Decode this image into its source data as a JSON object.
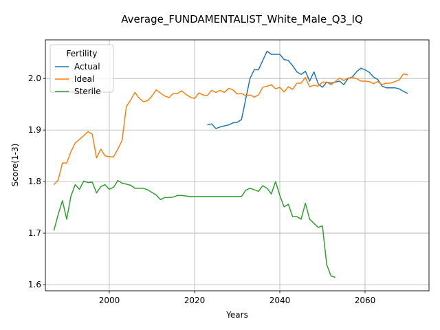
{
  "chart_data": {
    "type": "line",
    "title": "Average_FUNDAMENTALIST_White_Male_Q3_IQ",
    "xlabel": "Years",
    "ylabel": "Score(1-3)",
    "xlim": [
      1985,
      2075
    ],
    "ylim": [
      1.588,
      2.075
    ],
    "xticks": [
      2000,
      2020,
      2040,
      2060
    ],
    "yticks": [
      1.6,
      1.7,
      1.8,
      1.9,
      2.0
    ],
    "xtick_labels": [
      "2000",
      "2020",
      "2040",
      "2060"
    ],
    "ytick_labels": [
      "1.6",
      "1.7",
      "1.8",
      "1.9",
      "2.0"
    ],
    "grid": true,
    "legend": {
      "title": "Fertility",
      "placement": "upper left"
    },
    "series": [
      {
        "name": "Actual",
        "color": "#1f77b4",
        "x": [
          2023,
          2024,
          2025,
          2026,
          2027,
          2028,
          2029,
          2030,
          2031,
          2032,
          2033,
          2034,
          2035,
          2036,
          2037,
          2038,
          2039,
          2040,
          2041,
          2042,
          2043,
          2044,
          2045,
          2046,
          2047,
          2048,
          2049,
          2050,
          2051,
          2052,
          2053,
          2054,
          2055,
          2056,
          2057,
          2058,
          2059,
          2060,
          2061,
          2062,
          2063,
          2064,
          2065,
          2066,
          2067,
          2068,
          2069,
          2070
        ],
        "y": [
          1.91,
          1.912,
          1.903,
          1.906,
          1.908,
          1.91,
          1.914,
          1.915,
          1.92,
          1.96,
          2.0,
          2.017,
          2.017,
          2.035,
          2.053,
          2.047,
          2.047,
          2.047,
          2.037,
          2.035,
          2.025,
          2.013,
          2.008,
          2.014,
          1.995,
          2.013,
          1.99,
          1.983,
          1.993,
          1.991,
          1.993,
          1.995,
          1.988,
          2.0,
          2.003,
          2.013,
          2.02,
          2.017,
          2.012,
          2.003,
          1.998,
          1.985,
          1.982,
          1.982,
          1.982,
          1.98,
          1.975,
          1.971
        ]
      },
      {
        "name": "Ideal",
        "color": "#ff7f0e",
        "x": [
          1987,
          1988,
          1989,
          1990,
          1991,
          1992,
          1993,
          1994,
          1995,
          1996,
          1997,
          1998,
          1999,
          2000,
          2001,
          2002,
          2003,
          2004,
          2005,
          2006,
          2007,
          2008,
          2009,
          2010,
          2011,
          2012,
          2013,
          2014,
          2015,
          2016,
          2017,
          2018,
          2019,
          2020,
          2021,
          2022,
          2023,
          2024,
          2025,
          2026,
          2027,
          2028,
          2029,
          2030,
          2031,
          2032,
          2033,
          2034,
          2035,
          2036,
          2037,
          2038,
          2039,
          2040,
          2041,
          2042,
          2043,
          2044,
          2045,
          2046,
          2047,
          2048,
          2049,
          2050,
          2051,
          2052,
          2053,
          2054,
          2055,
          2056,
          2057,
          2058,
          2059,
          2060,
          2061,
          2062,
          2063,
          2064,
          2065,
          2066,
          2067,
          2068,
          2069,
          2070
        ],
        "y": [
          1.794,
          1.803,
          1.836,
          1.836,
          1.858,
          1.875,
          1.882,
          1.889,
          1.897,
          1.892,
          1.846,
          1.863,
          1.85,
          1.848,
          1.848,
          1.863,
          1.88,
          1.946,
          1.958,
          1.973,
          1.962,
          1.955,
          1.957,
          1.966,
          1.978,
          1.972,
          1.966,
          1.963,
          1.971,
          1.971,
          1.976,
          1.969,
          1.964,
          1.961,
          1.972,
          1.968,
          1.967,
          1.977,
          1.973,
          1.977,
          1.973,
          1.981,
          1.978,
          1.97,
          1.971,
          1.967,
          1.968,
          1.964,
          1.968,
          1.983,
          1.985,
          1.988,
          1.98,
          1.983,
          1.974,
          1.984,
          1.979,
          1.991,
          1.991,
          2.002,
          1.984,
          1.987,
          1.985,
          1.993,
          1.993,
          1.988,
          1.994,
          2.001,
          1.996,
          2.001,
          2.002,
          2.0,
          1.995,
          1.995,
          1.994,
          1.99,
          1.994,
          1.988,
          1.991,
          1.991,
          1.994,
          1.997,
          2.009,
          2.007
        ]
      },
      {
        "name": "Sterile",
        "color": "#2ca02c",
        "x": [
          1987,
          1988,
          1989,
          1990,
          1991,
          1992,
          1993,
          1994,
          1995,
          1996,
          1997,
          1998,
          1999,
          2000,
          2001,
          2002,
          2003,
          2004,
          2005,
          2006,
          2007,
          2008,
          2009,
          2010,
          2011,
          2012,
          2013,
          2014,
          2015,
          2016,
          2017,
          2018,
          2019,
          2020,
          2021,
          2022,
          2023,
          2024,
          2025,
          2026,
          2027,
          2028,
          2029,
          2030,
          2031,
          2032,
          2033,
          2034,
          2035,
          2036,
          2037,
          2038,
          2039,
          2040,
          2041,
          2042,
          2043,
          2044,
          2045,
          2046,
          2047,
          2048,
          2049,
          2050,
          2051,
          2052,
          2053
        ],
        "y": [
          1.705,
          1.736,
          1.763,
          1.727,
          1.772,
          1.794,
          1.785,
          1.801,
          1.798,
          1.799,
          1.778,
          1.79,
          1.794,
          1.785,
          1.789,
          1.802,
          1.797,
          1.795,
          1.793,
          1.787,
          1.787,
          1.787,
          1.784,
          1.779,
          1.774,
          1.765,
          1.769,
          1.769,
          1.77,
          1.773,
          1.773,
          1.772,
          1.771,
          1.771,
          1.771,
          1.771,
          1.771,
          1.771,
          1.771,
          1.771,
          1.771,
          1.771,
          1.771,
          1.771,
          1.771,
          1.783,
          1.787,
          1.784,
          1.781,
          1.792,
          1.787,
          1.776,
          1.8,
          1.773,
          1.751,
          1.756,
          1.732,
          1.732,
          1.727,
          1.758,
          1.727,
          1.719,
          1.711,
          1.714,
          1.639,
          1.617,
          1.614
        ]
      }
    ]
  }
}
